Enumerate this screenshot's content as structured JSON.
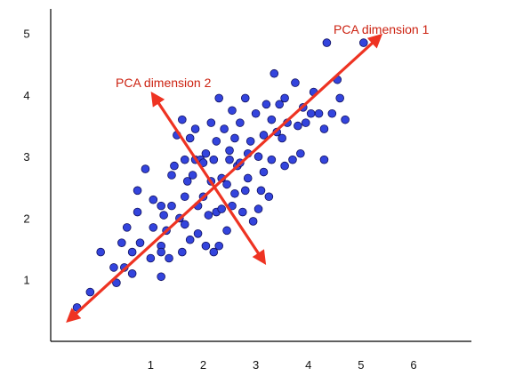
{
  "chart_data": {
    "type": "scatter",
    "title": "",
    "xlabel": "",
    "ylabel": "",
    "xlim": [
      -0.9,
      7.1
    ],
    "ylim": [
      0,
      5.4
    ],
    "x_ticks": [
      1,
      2,
      3,
      4,
      5,
      6
    ],
    "y_ticks": [
      1,
      2,
      3,
      4,
      5
    ],
    "grid": false,
    "colors": {
      "points": "#3344dd",
      "point_edge": "#101060",
      "arrows": "#ee3322",
      "labels": "#cc2211",
      "axes": "#000000"
    },
    "points": [
      [
        -0.4,
        0.55
      ],
      [
        -0.15,
        0.8
      ],
      [
        0.05,
        1.45
      ],
      [
        0.35,
        0.95
      ],
      [
        0.3,
        1.2
      ],
      [
        0.45,
        1.6
      ],
      [
        0.55,
        1.85
      ],
      [
        0.5,
        1.2
      ],
      [
        0.65,
        1.1
      ],
      [
        0.65,
        1.45
      ],
      [
        0.75,
        2.45
      ],
      [
        0.75,
        2.1
      ],
      [
        0.8,
        1.6
      ],
      [
        0.9,
        2.8
      ],
      [
        1.0,
        1.35
      ],
      [
        1.05,
        1.85
      ],
      [
        1.05,
        2.3
      ],
      [
        1.2,
        2.2
      ],
      [
        1.25,
        2.05
      ],
      [
        1.2,
        1.55
      ],
      [
        1.2,
        1.45
      ],
      [
        1.2,
        1.05
      ],
      [
        1.3,
        1.8
      ],
      [
        1.35,
        1.35
      ],
      [
        1.4,
        2.2
      ],
      [
        1.4,
        2.7
      ],
      [
        1.45,
        2.85
      ],
      [
        1.5,
        3.35
      ],
      [
        1.55,
        2.0
      ],
      [
        1.6,
        3.6
      ],
      [
        1.6,
        1.45
      ],
      [
        1.65,
        1.9
      ],
      [
        1.65,
        2.35
      ],
      [
        1.65,
        2.95
      ],
      [
        1.7,
        2.6
      ],
      [
        1.75,
        3.3
      ],
      [
        1.75,
        1.65
      ],
      [
        1.8,
        2.7
      ],
      [
        1.85,
        3.45
      ],
      [
        1.85,
        2.95
      ],
      [
        1.9,
        2.2
      ],
      [
        1.9,
        1.75
      ],
      [
        1.95,
        2.95
      ],
      [
        2.0,
        2.35
      ],
      [
        2.0,
        2.9
      ],
      [
        2.05,
        3.05
      ],
      [
        2.05,
        1.55
      ],
      [
        2.1,
        2.05
      ],
      [
        2.15,
        2.6
      ],
      [
        2.15,
        3.55
      ],
      [
        2.2,
        1.45
      ],
      [
        2.2,
        2.95
      ],
      [
        2.25,
        2.1
      ],
      [
        2.25,
        3.25
      ],
      [
        2.3,
        3.95
      ],
      [
        2.3,
        1.55
      ],
      [
        2.35,
        2.65
      ],
      [
        2.35,
        2.15
      ],
      [
        2.4,
        3.45
      ],
      [
        2.45,
        2.55
      ],
      [
        2.45,
        1.8
      ],
      [
        2.5,
        3.1
      ],
      [
        2.5,
        2.95
      ],
      [
        2.55,
        3.75
      ],
      [
        2.55,
        2.2
      ],
      [
        2.6,
        2.4
      ],
      [
        2.6,
        3.3
      ],
      [
        2.65,
        2.85
      ],
      [
        2.7,
        3.55
      ],
      [
        2.7,
        2.9
      ],
      [
        2.75,
        2.1
      ],
      [
        2.8,
        2.45
      ],
      [
        2.8,
        3.95
      ],
      [
        2.85,
        3.05
      ],
      [
        2.85,
        2.65
      ],
      [
        2.9,
        3.25
      ],
      [
        2.95,
        1.95
      ],
      [
        3.0,
        3.7
      ],
      [
        3.05,
        2.15
      ],
      [
        3.05,
        3.0
      ],
      [
        3.1,
        2.45
      ],
      [
        3.15,
        3.35
      ],
      [
        3.15,
        2.75
      ],
      [
        3.2,
        3.85
      ],
      [
        3.25,
        2.35
      ],
      [
        3.3,
        3.6
      ],
      [
        3.3,
        2.95
      ],
      [
        3.35,
        4.35
      ],
      [
        3.4,
        3.4
      ],
      [
        3.45,
        3.85
      ],
      [
        3.5,
        3.3
      ],
      [
        3.55,
        2.85
      ],
      [
        3.55,
        3.95
      ],
      [
        3.6,
        3.55
      ],
      [
        3.7,
        2.95
      ],
      [
        3.75,
        4.2
      ],
      [
        3.8,
        3.5
      ],
      [
        3.85,
        3.05
      ],
      [
        3.9,
        3.8
      ],
      [
        3.95,
        3.55
      ],
      [
        4.05,
        3.7
      ],
      [
        4.1,
        4.05
      ],
      [
        4.2,
        3.7
      ],
      [
        4.3,
        3.45
      ],
      [
        4.3,
        2.95
      ],
      [
        4.35,
        4.85
      ],
      [
        4.45,
        3.7
      ],
      [
        4.55,
        4.25
      ],
      [
        4.6,
        3.95
      ],
      [
        4.7,
        3.6
      ],
      [
        5.05,
        4.85
      ]
    ],
    "annotations": [
      {
        "name": "pca-dimension-1",
        "text": "PCA dimension 1",
        "from": [
          -0.55,
          0.35
        ],
        "to": [
          5.35,
          4.95
        ],
        "double_headed": true
      },
      {
        "name": "pca-dimension-2",
        "text": "PCA dimension 2",
        "from": [
          1.05,
          4.0
        ],
        "to": [
          3.15,
          1.3
        ],
        "double_headed": true
      }
    ]
  }
}
